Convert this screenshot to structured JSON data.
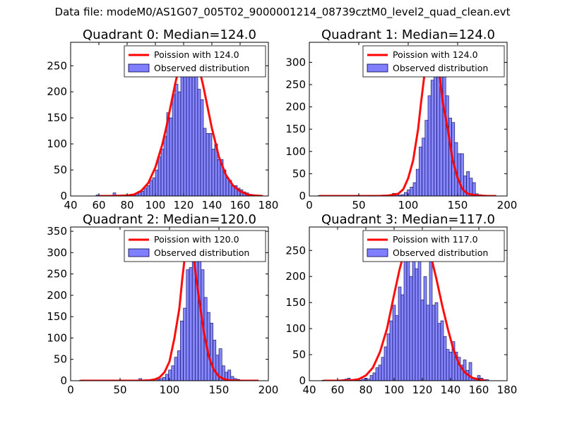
{
  "suptitle": "Data file: modeM0/AS1G07_005T02_9000001214_08739cztM0_level2_quad_clean.evt",
  "colors": {
    "poisson": "#ff0000",
    "hist_fill": "#7f7fff",
    "hist_edge": "#00004c",
    "axis": "#000000"
  },
  "chart_data": [
    {
      "type": "histogram+line",
      "title": "Quadrant 0: Median=124.0",
      "median": 124.0,
      "xlim": [
        40,
        180
      ],
      "ylim": [
        0,
        295
      ],
      "xticks": [
        40,
        60,
        80,
        100,
        120,
        140,
        160,
        180
      ],
      "yticks": [
        0,
        50,
        100,
        150,
        200,
        250
      ],
      "legend": {
        "line_label": "Poission with 124.0",
        "hist_label": "Observed distribution",
        "position": "upper right"
      },
      "hist": {
        "bin_edges": [
          58,
          60,
          62,
          64,
          66,
          68,
          70,
          72,
          74,
          76,
          78,
          80,
          82,
          84,
          86,
          88,
          90,
          92,
          94,
          96,
          98,
          100,
          102,
          104,
          106,
          108,
          110,
          112,
          114,
          116,
          118,
          120,
          122,
          124,
          126,
          128,
          130,
          132,
          134,
          136,
          138,
          140,
          142,
          144,
          146,
          148,
          150,
          152,
          154,
          156,
          158,
          160,
          162,
          164,
          166,
          168,
          170,
          172,
          174,
          176,
          178
        ],
        "counts": [
          2,
          0,
          1,
          0,
          0,
          1,
          6,
          1,
          0,
          1,
          2,
          2,
          3,
          3,
          5,
          8,
          9,
          15,
          20,
          30,
          35,
          50,
          75,
          90,
          115,
          160,
          150,
          195,
          215,
          200,
          255,
          230,
          265,
          260,
          245,
          260,
          205,
          185,
          130,
          120,
          120,
          90,
          100,
          70,
          70,
          50,
          35,
          30,
          20,
          20,
          15,
          12,
          8,
          6,
          3,
          2,
          1,
          0,
          1,
          0
        ]
      },
      "poisson_curve": {
        "x": [
          60,
          70,
          80,
          85,
          90,
          95,
          100,
          105,
          108,
          111,
          114,
          117,
          120,
          122,
          124,
          126,
          128,
          131,
          134,
          137,
          140,
          145,
          150,
          155,
          160,
          165,
          170,
          176
        ],
        "y": [
          0,
          0,
          1,
          3,
          10,
          25,
          55,
          100,
          135,
          175,
          215,
          250,
          272,
          280,
          282,
          280,
          272,
          245,
          210,
          170,
          130,
          75,
          40,
          20,
          9,
          3,
          1,
          0
        ]
      }
    },
    {
      "type": "histogram+line",
      "title": "Quadrant 1: Median=124.0",
      "median": 124.0,
      "xlim": [
        0,
        200
      ],
      "ylim": [
        0,
        345
      ],
      "xticks": [
        0,
        50,
        100,
        150,
        200
      ],
      "yticks": [
        0,
        50,
        100,
        150,
        200,
        250,
        300
      ],
      "legend": {
        "line_label": "Poission with 124.0",
        "hist_label": "Observed distribution",
        "position": "upper right"
      },
      "hist": {
        "bin_edges": [
          9,
          12,
          15,
          18,
          21,
          24,
          27,
          30,
          33,
          36,
          39,
          42,
          45,
          48,
          51,
          54,
          57,
          60,
          63,
          66,
          69,
          72,
          75,
          78,
          81,
          84,
          87,
          90,
          93,
          96,
          99,
          102,
          105,
          108,
          111,
          114,
          117,
          120,
          123,
          126,
          129,
          132,
          135,
          138,
          141,
          144,
          147,
          150,
          153,
          156,
          159,
          162,
          165,
          168,
          171,
          174,
          177,
          180,
          183,
          186,
          189
        ],
        "counts": [
          1,
          0,
          0,
          0,
          0,
          0,
          0,
          0,
          0,
          0,
          0,
          0,
          0,
          0,
          0,
          0,
          0,
          0,
          1,
          0,
          0,
          0,
          2,
          0,
          0,
          6,
          4,
          2,
          3,
          8,
          14,
          20,
          30,
          60,
          110,
          130,
          170,
          225,
          260,
          295,
          310,
          290,
          280,
          225,
          175,
          165,
          120,
          95,
          95,
          45,
          55,
          40,
          30,
          5,
          3,
          2,
          1,
          0,
          0,
          0
        ]
      },
      "poisson_curve": {
        "x": [
          10,
          50,
          70,
          80,
          90,
          95,
          100,
          105,
          110,
          113,
          116,
          119,
          122,
          124,
          126,
          129,
          132,
          135,
          140,
          145,
          150,
          155,
          160,
          170,
          180,
          189
        ],
        "y": [
          0,
          0,
          0,
          1,
          5,
          15,
          40,
          80,
          150,
          210,
          265,
          305,
          325,
          330,
          325,
          305,
          265,
          210,
          150,
          80,
          40,
          15,
          5,
          1,
          0,
          0
        ]
      }
    },
    {
      "type": "histogram+line",
      "title": "Quadrant 2: Median=120.0",
      "median": 120.0,
      "xlim": [
        0,
        200
      ],
      "ylim": [
        0,
        360
      ],
      "xticks": [
        0,
        50,
        100,
        150,
        200
      ],
      "yticks": [
        0,
        50,
        100,
        150,
        200,
        250,
        300,
        350
      ],
      "legend": {
        "line_label": "Poission with 120.0",
        "hist_label": "Observed distribution",
        "position": "upper right"
      },
      "hist": {
        "bin_edges": [
          9,
          12,
          15,
          18,
          21,
          24,
          27,
          30,
          33,
          36,
          39,
          42,
          45,
          48,
          51,
          54,
          57,
          60,
          63,
          66,
          69,
          72,
          75,
          78,
          81,
          84,
          87,
          90,
          93,
          96,
          99,
          102,
          105,
          108,
          111,
          114,
          117,
          120,
          123,
          126,
          129,
          132,
          135,
          138,
          141,
          144,
          147,
          150,
          153,
          156,
          159,
          162,
          165,
          168,
          171,
          174,
          177,
          180,
          183,
          186,
          189
        ],
        "counts": [
          1,
          0,
          0,
          0,
          0,
          0,
          0,
          0,
          0,
          0,
          0,
          0,
          0,
          0,
          0,
          0,
          0,
          0,
          0,
          1,
          5,
          0,
          0,
          0,
          0,
          0,
          3,
          5,
          8,
          15,
          25,
          35,
          55,
          70,
          140,
          170,
          260,
          265,
          330,
          345,
          320,
          260,
          195,
          160,
          135,
          95,
          60,
          75,
          35,
          20,
          25,
          10,
          5,
          3,
          1,
          0,
          0,
          0,
          0,
          0
        ]
      },
      "poisson_curve": {
        "x": [
          10,
          50,
          70,
          80,
          85,
          90,
          95,
          100,
          105,
          110,
          113,
          116,
          118,
          120,
          122,
          124,
          127,
          130,
          135,
          140,
          145,
          150,
          155,
          160,
          170,
          180,
          190
        ],
        "y": [
          0,
          0,
          0,
          1,
          3,
          8,
          20,
          45,
          100,
          170,
          240,
          300,
          330,
          340,
          330,
          300,
          240,
          190,
          110,
          55,
          25,
          10,
          4,
          1,
          0,
          0,
          0
        ]
      }
    },
    {
      "type": "histogram+line",
      "title": "Quadrant 3: Median=117.0",
      "median": 117.0,
      "xlim": [
        40,
        180
      ],
      "ylim": [
        0,
        295
      ],
      "xticks": [
        40,
        60,
        80,
        100,
        120,
        140,
        160,
        180
      ],
      "yticks": [
        0,
        50,
        100,
        150,
        200,
        250
      ],
      "legend": {
        "line_label": "Poission with 117.0",
        "hist_label": "Observed distribution",
        "position": "upper right"
      },
      "hist": {
        "bin_edges": [
          49,
          51,
          53,
          55,
          57,
          59,
          61,
          63,
          65,
          67,
          69,
          71,
          73,
          75,
          77,
          79,
          81,
          83,
          85,
          87,
          89,
          91,
          93,
          95,
          97,
          99,
          101,
          103,
          105,
          107,
          109,
          111,
          113,
          115,
          117,
          119,
          121,
          123,
          125,
          127,
          129,
          131,
          133,
          135,
          137,
          139,
          141,
          143,
          145,
          147,
          149,
          151,
          153,
          155,
          157,
          159,
          161,
          163,
          165,
          167,
          169
        ],
        "counts": [
          1,
          0,
          0,
          0,
          0,
          1,
          1,
          2,
          3,
          5,
          1,
          0,
          1,
          1,
          3,
          5,
          3,
          10,
          15,
          25,
          30,
          45,
          65,
          90,
          115,
          145,
          125,
          180,
          165,
          245,
          260,
          200,
          245,
          215,
          230,
          155,
          200,
          145,
          235,
          145,
          150,
          110,
          115,
          85,
          60,
          55,
          75,
          55,
          45,
          30,
          40,
          20,
          35,
          5,
          5,
          10,
          5,
          2,
          2,
          0
        ]
      },
      "poisson_curve": {
        "x": [
          50,
          60,
          70,
          75,
          80,
          85,
          90,
          95,
          100,
          104,
          108,
          111,
          114,
          117,
          120,
          123,
          126,
          130,
          134,
          138,
          142,
          146,
          150,
          155,
          160,
          165
        ],
        "y": [
          0,
          0,
          1,
          3,
          10,
          25,
          55,
          100,
          165,
          215,
          255,
          270,
          275,
          277,
          275,
          265,
          240,
          195,
          145,
          100,
          60,
          32,
          16,
          6,
          2,
          0
        ]
      }
    }
  ]
}
